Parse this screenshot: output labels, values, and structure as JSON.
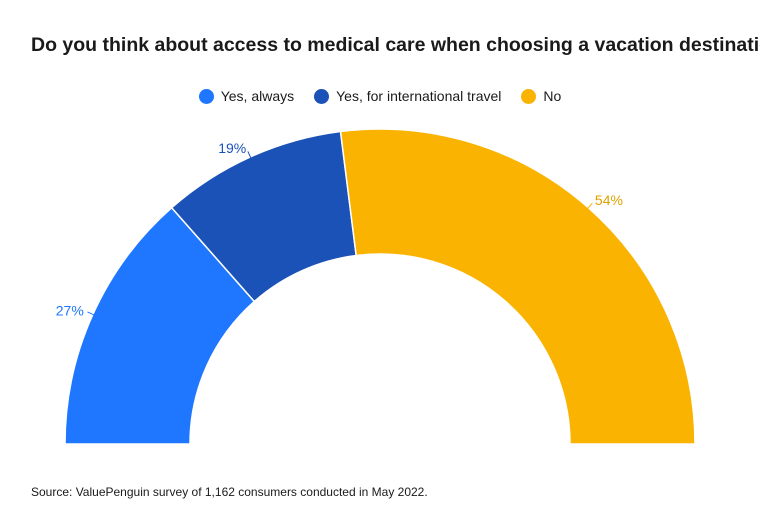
{
  "title": "Do you think about access to medical care when choosing a vacation destination?",
  "source": "Source: ValuePenguin survey of 1,162 consumers conducted in May 2022.",
  "colors": {
    "yes_always": "#1f77ff",
    "yes_international": "#1b52b8",
    "no": "#f9b300"
  },
  "chart_data": {
    "type": "pie",
    "variant": "semi-donut",
    "title": "Do you think about access to medical care when choosing a vacation destination?",
    "legend_position": "top-center",
    "series": [
      {
        "name": "Yes, always",
        "value": 27,
        "label": "27%",
        "color": "#1f77ff"
      },
      {
        "name": "Yes, for international travel",
        "value": 19,
        "label": "19%",
        "color": "#1b52b8"
      },
      {
        "name": "No",
        "value": 54,
        "label": "54%",
        "color": "#f9b300"
      }
    ]
  }
}
